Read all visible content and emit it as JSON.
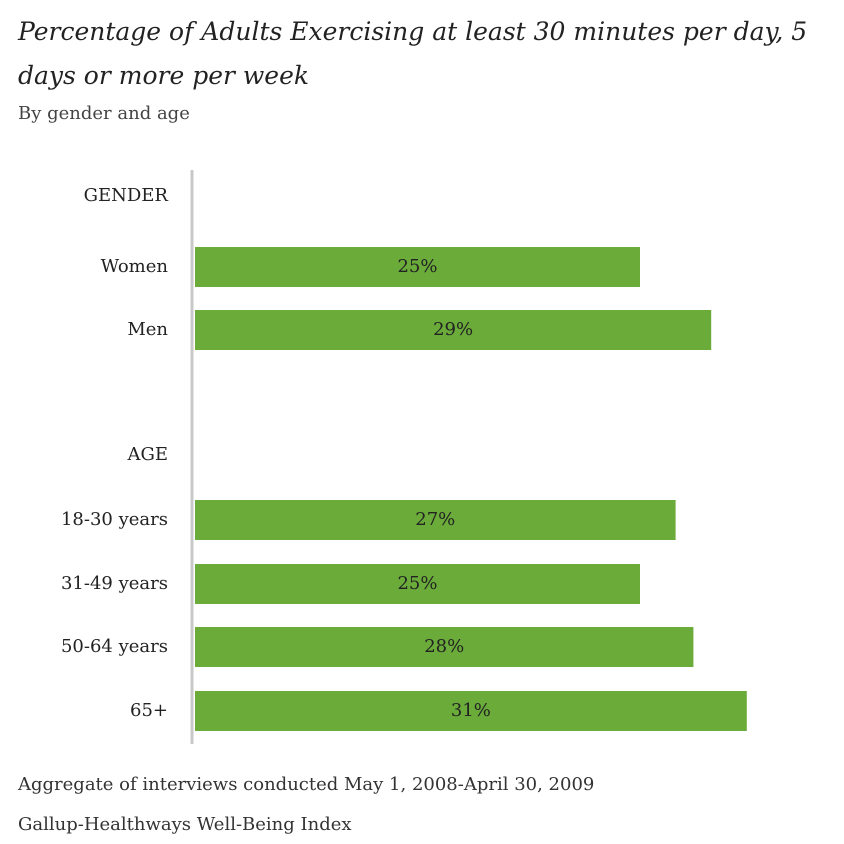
{
  "chart_data": {
    "type": "bar",
    "orientation": "horizontal",
    "title": "Percentage of Adults Exercising at least 30 minutes per day, 5 days or more per week",
    "subtitle": "By gender and age",
    "groups": [
      {
        "heading": "GENDER",
        "categories": [
          "Women",
          "Men"
        ],
        "values": [
          25,
          29
        ],
        "value_labels": [
          "25%",
          "29%"
        ]
      },
      {
        "heading": "AGE",
        "categories": [
          "18-30 years",
          "31-49 years",
          "50-64 years",
          "65+"
        ],
        "values": [
          27,
          25,
          28,
          31
        ],
        "value_labels": [
          "27%",
          "25%",
          "28%",
          "31%"
        ]
      }
    ],
    "bar_color": "#6aab3a",
    "axis_color": "#c8c8c8",
    "grid": false,
    "legend": "none"
  },
  "footer": {
    "note": "Aggregate of interviews conducted May 1, 2008-April 30, 2009",
    "source": "Gallup-Healthways Well-Being Index"
  }
}
